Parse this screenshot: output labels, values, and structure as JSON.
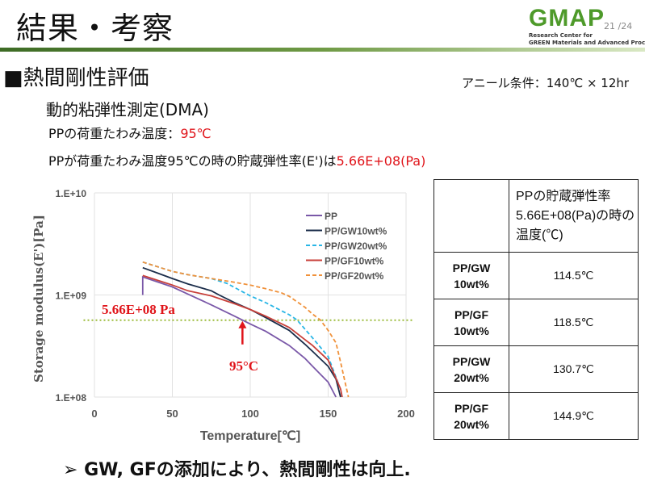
{
  "slide": {
    "title": "結果・考察",
    "logo_text": "GMAP",
    "page_number": "21 /24",
    "org_line1": "Research Center for",
    "org_line2": "GREEN Materials and Advanced Processing",
    "section": "■熱間剛性評価",
    "anneal_condition": "アニール条件：140℃ × 12hr",
    "subtitle": "動的粘弾性測定(DMA)",
    "hdt_label": "PPの荷重たわみ温度：",
    "hdt_value": "95℃",
    "modulus_label": "PPが荷重たわみ温度95℃の時の貯蔵弾性率(E')は",
    "modulus_value": "5.66E+08(Pa)",
    "conclusion": "➢  GW, GFの添加により、熱間剛性は向上."
  },
  "table": {
    "header": "PPの貯蔵弾性率5.66E+08(Pa)の時の温度(℃)",
    "rows": [
      {
        "label1": "PP/GW",
        "label2": "10wt%",
        "value": "114.5℃"
      },
      {
        "label1": "PP/GF",
        "label2": "10wt%",
        "value": "118.5℃"
      },
      {
        "label1": "PP/GW",
        "label2": "20wt%",
        "value": "130.7℃"
      },
      {
        "label1": "PP/GF",
        "label2": "20wt%",
        "value": "144.9℃"
      }
    ]
  },
  "chart_data": {
    "type": "line",
    "xlabel": "Temperature[℃]",
    "ylabel": "Storage modulus(E')[Pa]",
    "xlim": [
      0,
      200
    ],
    "ylim": [
      100000000.0,
      10000000000.0
    ],
    "yscale": "log",
    "xticks": [
      "0",
      "50",
      "100",
      "150",
      "200"
    ],
    "yticks": [
      "1.E+08",
      "1.E+09",
      "1.E+10"
    ],
    "grid": true,
    "legend_position": "top-right",
    "reference_line": {
      "y": 566000000.0,
      "label": "5.66E+08 Pa",
      "color": "#9bbb3b"
    },
    "annotation": {
      "x": 95,
      "label": "95°C",
      "color": "#e0141a"
    },
    "series": [
      {
        "name": "PP",
        "color": "#7a58a8",
        "dash": false,
        "x": [
          31,
          31,
          40,
          50,
          60,
          75,
          90,
          100,
          110,
          125,
          135,
          140,
          150,
          155
        ],
        "y": [
          1000000000.0,
          1500000000.0,
          1350000000.0,
          1200000000.0,
          1020000000.0,
          800000000.0,
          620000000.0,
          520000000.0,
          440000000.0,
          320000000.0,
          240000000.0,
          200000000.0,
          140000000.0,
          100000000.0
        ]
      },
      {
        "name": "PP/GW10wt%",
        "color": "#1b2d4a",
        "dash": false,
        "x": [
          31,
          40,
          50,
          60,
          75,
          80,
          90,
          100,
          110,
          125,
          135,
          140,
          150,
          155,
          158
        ],
        "y": [
          1850000000.0,
          1650000000.0,
          1450000000.0,
          1280000000.0,
          1100000000.0,
          1000000000.0,
          840000000.0,
          720000000.0,
          600000000.0,
          450000000.0,
          330000000.0,
          280000000.0,
          200000000.0,
          150000000.0,
          100000000.0
        ]
      },
      {
        "name": "PP/GW20wt%",
        "color": "#29b6e6",
        "dash": true,
        "x": [
          31,
          40,
          50,
          60,
          75,
          85,
          100,
          110,
          125,
          130,
          140,
          150,
          157
        ],
        "y": [
          2100000000.0,
          1900000000.0,
          1700000000.0,
          1580000000.0,
          1450000000.0,
          1300000000.0,
          980000000.0,
          840000000.0,
          640000000.0,
          570000000.0,
          380000000.0,
          250000000.0,
          130000000.0
        ]
      },
      {
        "name": "PP/GF10wt%",
        "color": "#c8403a",
        "dash": false,
        "x": [
          31,
          40,
          50,
          60,
          75,
          90,
          100,
          110,
          125,
          130,
          140,
          150,
          158,
          159
        ],
        "y": [
          1550000000.0,
          1400000000.0,
          1250000000.0,
          1100000000.0,
          980000000.0,
          820000000.0,
          720000000.0,
          620000000.0,
          480000000.0,
          420000000.0,
          320000000.0,
          230000000.0,
          120000000.0,
          100000000.0
        ]
      },
      {
        "name": "PP/GF20wt%",
        "color": "#f0913a",
        "dash": true,
        "x": [
          31,
          40,
          50,
          60,
          75,
          90,
          100,
          110,
          120,
          125,
          135,
          140,
          145,
          150,
          155,
          158,
          163
        ],
        "y": [
          2100000000.0,
          1900000000.0,
          1700000000.0,
          1580000000.0,
          1450000000.0,
          1330000000.0,
          1250000000.0,
          1150000000.0,
          1050000000.0,
          970000000.0,
          760000000.0,
          650000000.0,
          570000000.0,
          450000000.0,
          340000000.0,
          220000000.0,
          100000000.0
        ]
      }
    ]
  }
}
